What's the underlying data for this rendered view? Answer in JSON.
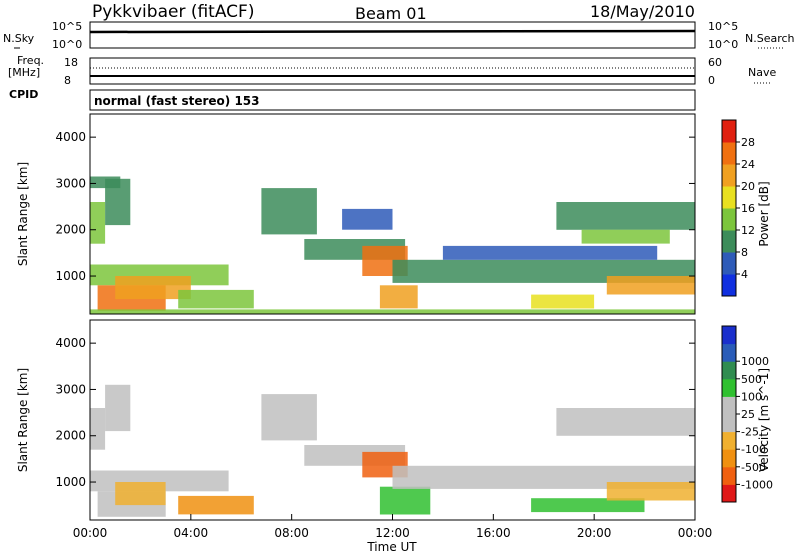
{
  "header": {
    "station": "Pykkvibaer (fitACF)",
    "beam": "Beam 01",
    "date": "18/May/2010"
  },
  "status_panels": {
    "nsky_label": "N.Sky",
    "freq_label_1": "Freq.",
    "freq_label_2": "[MHz]",
    "cpid_label": "CPID",
    "nsearch_label": "N.Search",
    "nave_label": "Nave",
    "nsky_ticks": [
      "10^5",
      "10^0"
    ],
    "nsearch_ticks": [
      "10^5",
      "10^0"
    ],
    "freq_ticks": [
      "18",
      "8"
    ],
    "nave_ticks": [
      "60",
      "0"
    ],
    "cpid_text": "normal (fast stereo) 153"
  },
  "colors": {
    "power_scale": [
      "#1030e0",
      "#2e5bb8",
      "#3c8c5a",
      "#7cc53c",
      "#e8e020",
      "#f0a020",
      "#f07010",
      "#e02010"
    ],
    "velocity_scale": [
      "#e01818",
      "#f06010",
      "#f09010",
      "#f0b030",
      "#c0c0c0",
      "#c0c0c0",
      "#30c030",
      "#308c50",
      "#2a5cb8",
      "#1a2fcc"
    ],
    "ground_scatter": "#a8a8a8"
  },
  "chart_data": [
    {
      "type": "heatmap",
      "title": "Power",
      "ylabel": "Slant Range [km]",
      "xlabel": "",
      "ylim": [
        180,
        4500
      ],
      "xlim": [
        0,
        24
      ],
      "y_ticks": [
        "1000",
        "2000",
        "3000",
        "4000"
      ],
      "x_ticks": [],
      "colorbar_label": "Power [dB]",
      "colorbar_ticks": [
        "4",
        "8",
        "12",
        "16",
        "20",
        "24",
        "28"
      ],
      "colorbar_range": [
        0,
        32
      ],
      "patches": [
        {
          "t": [
            0.0,
            0.6
          ],
          "r": [
            1700,
            2600
          ],
          "v": 12
        },
        {
          "t": [
            0.6,
            1.6
          ],
          "r": [
            2100,
            3100
          ],
          "v": 8
        },
        {
          "t": [
            0.0,
            1.2
          ],
          "r": [
            2900,
            3150
          ],
          "v": 8
        },
        {
          "t": [
            0.0,
            5.5
          ],
          "r": [
            800,
            1250
          ],
          "v": 12
        },
        {
          "t": [
            0.3,
            3.0
          ],
          "r": [
            250,
            800
          ],
          "v": 26
        },
        {
          "t": [
            1.0,
            4.0
          ],
          "r": [
            500,
            1000
          ],
          "v": 20
        },
        {
          "t": [
            3.5,
            6.5
          ],
          "r": [
            300,
            700
          ],
          "v": 14
        },
        {
          "t": [
            6.8,
            9.0
          ],
          "r": [
            1900,
            2900
          ],
          "v": 8
        },
        {
          "t": [
            8.5,
            12.5
          ],
          "r": [
            1350,
            1800
          ],
          "v": 8
        },
        {
          "t": [
            10.0,
            12.0
          ],
          "r": [
            2000,
            2450
          ],
          "v": 6
        },
        {
          "t": [
            10.8,
            12.6
          ],
          "r": [
            1000,
            1650
          ],
          "v": 24
        },
        {
          "t": [
            11.5,
            13.0
          ],
          "r": [
            300,
            800
          ],
          "v": 22
        },
        {
          "t": [
            12.0,
            24.0
          ],
          "r": [
            850,
            1350
          ],
          "v": 10
        },
        {
          "t": [
            14.0,
            22.5
          ],
          "r": [
            1350,
            1650
          ],
          "v": 6
        },
        {
          "t": [
            18.5,
            24.0
          ],
          "r": [
            2000,
            2600
          ],
          "v": 8
        },
        {
          "t": [
            19.5,
            23.0
          ],
          "r": [
            1700,
            2000
          ],
          "v": 12
        },
        {
          "t": [
            20.5,
            24.0
          ],
          "r": [
            600,
            1000
          ],
          "v": 20
        },
        {
          "t": [
            17.5,
            20.0
          ],
          "r": [
            300,
            600
          ],
          "v": 18
        },
        {
          "t": [
            0.0,
            24.0
          ],
          "r": [
            180,
            280
          ],
          "v": 14
        }
      ]
    },
    {
      "type": "heatmap",
      "title": "Velocity",
      "ylabel": "Slant Range [km]",
      "xlabel": "Time UT",
      "ylim": [
        180,
        4500
      ],
      "xlim": [
        0,
        24
      ],
      "y_ticks": [
        "1000",
        "2000",
        "3000",
        "4000"
      ],
      "x_ticks": [
        "00:00",
        "04:00",
        "08:00",
        "12:00",
        "16:00",
        "20:00",
        "00:00"
      ],
      "colorbar_label": "Velocity [m s^-1]",
      "colorbar_ticks": [
        "-1000",
        "-500",
        "-100",
        "-25",
        "25",
        "100",
        "500",
        "1000"
      ],
      "patches": [
        {
          "t": [
            0.0,
            0.6
          ],
          "r": [
            1700,
            2600
          ],
          "v": -10
        },
        {
          "t": [
            0.6,
            1.6
          ],
          "r": [
            2100,
            3100
          ],
          "v": 0
        },
        {
          "t": [
            0.0,
            5.5
          ],
          "r": [
            800,
            1250
          ],
          "v": 10
        },
        {
          "t": [
            0.3,
            3.0
          ],
          "r": [
            250,
            800
          ],
          "v": 0
        },
        {
          "t": [
            1.0,
            3.0
          ],
          "r": [
            500,
            1000
          ],
          "v": -60
        },
        {
          "t": [
            3.5,
            6.5
          ],
          "r": [
            300,
            700
          ],
          "v": -200
        },
        {
          "t": [
            6.8,
            9.0
          ],
          "r": [
            1900,
            2900
          ],
          "v": 0
        },
        {
          "t": [
            8.5,
            12.5
          ],
          "r": [
            1350,
            1800
          ],
          "v": 0
        },
        {
          "t": [
            10.8,
            12.6
          ],
          "r": [
            1100,
            1650
          ],
          "v": -800
        },
        {
          "t": [
            11.5,
            13.5
          ],
          "r": [
            300,
            900
          ],
          "v": 60
        },
        {
          "t": [
            12.0,
            24.0
          ],
          "r": [
            850,
            1350
          ],
          "v": 0
        },
        {
          "t": [
            18.5,
            24.0
          ],
          "r": [
            2000,
            2600
          ],
          "v": 0
        },
        {
          "t": [
            17.5,
            22.0
          ],
          "r": [
            350,
            650
          ],
          "v": 80
        },
        {
          "t": [
            20.5,
            24.0
          ],
          "r": [
            600,
            1000
          ],
          "v": -60
        }
      ]
    }
  ]
}
